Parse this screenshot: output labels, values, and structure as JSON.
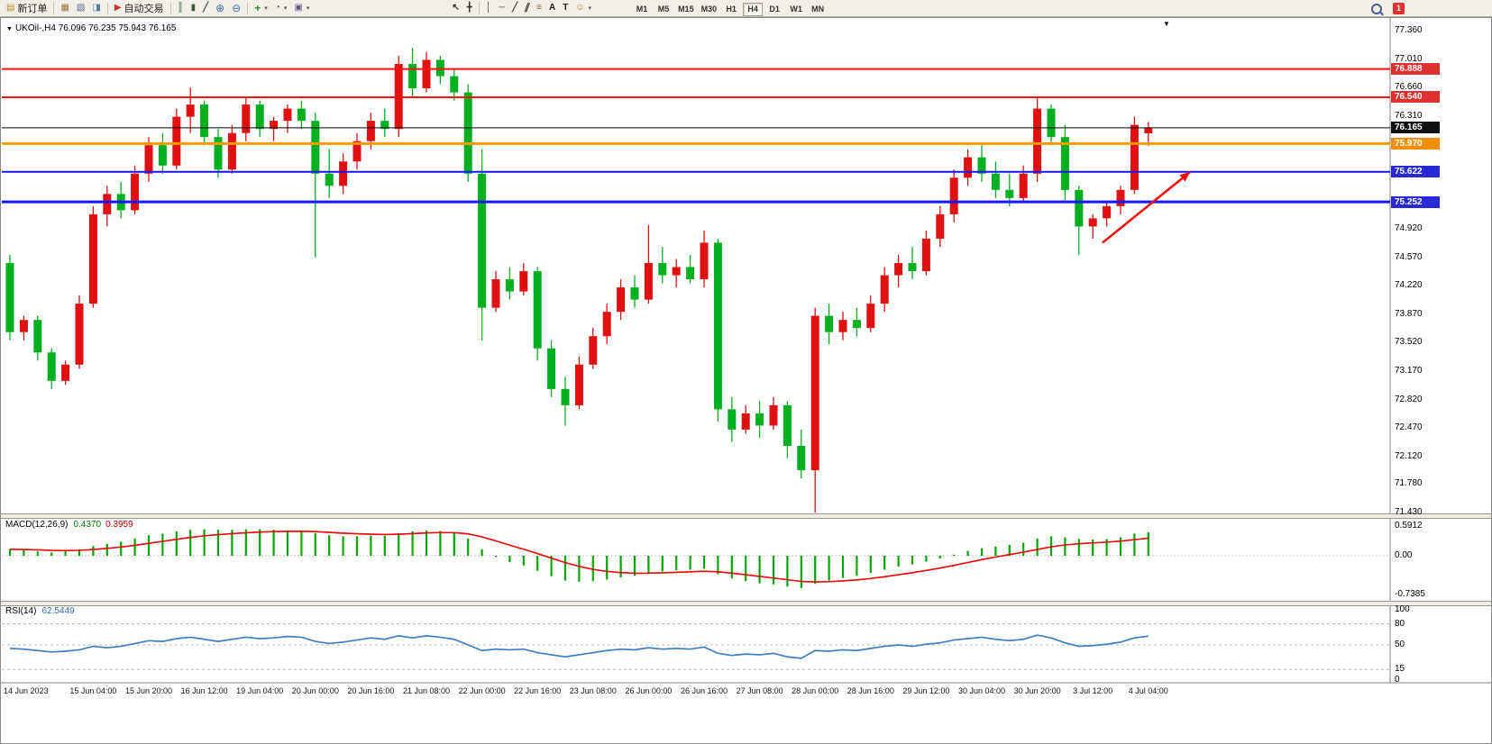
{
  "toolbar": {
    "new_order_label": "新订单",
    "autotrade_label": "自动交易",
    "timeframe_labels": [
      "M1",
      "M5",
      "M15",
      "M30",
      "H1",
      "H4",
      "D1",
      "W1",
      "MN"
    ],
    "active_timeframe": "H4",
    "notification_count": "1",
    "icons": {
      "new_order": "▤",
      "charts": "▦",
      "profiles": "▧",
      "sounds": "◨",
      "autotrade": "▶",
      "chart_bars": "║",
      "chart_candles": "▮",
      "chart_line": "╱",
      "zoom_in": "⊕",
      "zoom_out": "⊖",
      "add_indicator": "+",
      "periods": "◔",
      "templates": "▣",
      "cursor": "↖",
      "crosshair": "╋",
      "vertical_line": "│",
      "horizontal_line": "─",
      "trendline": "╱",
      "channel": "∥",
      "fibonacci": "≡",
      "text": "A",
      "label": "T",
      "shapes": "☺",
      "dropdown": "▾"
    }
  },
  "chart": {
    "title_text": "UKOil-,H4 76.096 76.235 75.943 76.165",
    "marker_glyph": "▼",
    "shift_marker_glyph": "▼",
    "colors": {
      "up": "#e01010",
      "down": "#00b01e",
      "background": "#ffffff",
      "axis_text": "#000000"
    },
    "hlines": [
      {
        "price": 76.888,
        "color": "#ff1111",
        "width": 2
      },
      {
        "price": 76.54,
        "color": "#ff1111",
        "width": 2
      },
      {
        "price": 76.165,
        "color": "#000000",
        "width": 1
      },
      {
        "price": 75.97,
        "color": "#ff9900",
        "width": 3
      },
      {
        "price": 75.622,
        "color": "#1414ff",
        "width": 2
      },
      {
        "price": 75.252,
        "color": "#1414ff",
        "width": 3
      }
    ],
    "price_tags": [
      {
        "text": "76.888",
        "price": 76.888,
        "bg": "#e03131"
      },
      {
        "text": "76.540",
        "price": 76.54,
        "bg": "#e03131"
      },
      {
        "text": "76.165",
        "price": 76.165,
        "bg": "#101010"
      },
      {
        "text": "75.970",
        "price": 75.97,
        "bg": "#f09000"
      },
      {
        "text": "75.622",
        "price": 75.622,
        "bg": "#2929d8"
      },
      {
        "text": "75.252",
        "price": 75.252,
        "bg": "#2929d8"
      }
    ],
    "price_axis": {
      "ticks": [
        "77.360",
        "77.010",
        "76.660",
        "76.310",
        "75.960",
        "75.610",
        "75.260",
        "74.920",
        "74.570",
        "74.220",
        "73.870",
        "73.520",
        "73.170",
        "72.820",
        "72.470",
        "72.120",
        "71.780",
        "71.430"
      ]
    },
    "time_axis": {
      "labels": [
        "14 Jun 2023",
        "15 Jun 04:00",
        "15 Jun 20:00",
        "16 Jun 12:00",
        "19 Jun 04:00",
        "20 Jun 00:00",
        "20 Jun 16:00",
        "21 Jun 08:00",
        "22 Jun 00:00",
        "22 Jun 16:00",
        "23 Jun 08:00",
        "26 Jun 00:00",
        "26 Jun 16:00",
        "27 Jun 08:00",
        "28 Jun 00:00",
        "28 Jun 16:00",
        "29 Jun 12:00",
        "30 Jun 04:00",
        "30 Jun 20:00",
        "3 Jul 12:00",
        "4 Jul 04:00"
      ]
    },
    "annotations": {
      "trend_arrow": {
        "from_index": 78.7,
        "from_price": 74.75,
        "to_index": 85,
        "to_price": 75.62,
        "color": "#ee1111"
      }
    }
  },
  "macd": {
    "label": "MACD(12,26,9)",
    "value_main": "0.4370",
    "value_signal": "0.3959",
    "axis_labels": [
      "0.5912",
      "0.00",
      "-0.7385"
    ],
    "color": "#00a800",
    "signal_color": "#f00000"
  },
  "rsi": {
    "label": "RSI(14)",
    "value": "62.5449",
    "axis_labels": [
      "100",
      "80",
      "50",
      "15",
      "0"
    ],
    "levels": [
      80,
      50,
      15
    ],
    "color": "#3d7ebf"
  },
  "chart_data": [
    {
      "type": "candlestick",
      "symbol": "UKOil-",
      "timeframe": "H4",
      "last_ohlc": {
        "open": 76.096,
        "high": 76.235,
        "low": 75.943,
        "close": 76.165
      },
      "ylim": [
        71.43,
        77.36
      ],
      "note": "red = bullish, green = bearish",
      "candles": [
        [
          74.5,
          74.6,
          73.55,
          73.65
        ],
        [
          73.65,
          73.85,
          73.55,
          73.8
        ],
        [
          73.8,
          73.85,
          73.3,
          73.4
        ],
        [
          73.4,
          73.45,
          72.95,
          73.05
        ],
        [
          73.05,
          73.3,
          73.0,
          73.25
        ],
        [
          73.25,
          74.1,
          73.2,
          74.0
        ],
        [
          74.0,
          75.2,
          73.95,
          75.1
        ],
        [
          75.1,
          75.45,
          74.95,
          75.35
        ],
        [
          75.35,
          75.5,
          75.05,
          75.15
        ],
        [
          75.15,
          75.7,
          75.1,
          75.6
        ],
        [
          75.6,
          76.05,
          75.5,
          75.95
        ],
        [
          75.95,
          76.1,
          75.6,
          75.7
        ],
        [
          75.7,
          76.4,
          75.65,
          76.3
        ],
        [
          76.3,
          76.66,
          76.1,
          76.45
        ],
        [
          76.45,
          76.5,
          75.95,
          76.05
        ],
        [
          76.05,
          76.15,
          75.55,
          75.65
        ],
        [
          75.65,
          76.2,
          75.6,
          76.1
        ],
        [
          76.1,
          76.55,
          76.0,
          76.45
        ],
        [
          76.45,
          76.5,
          76.05,
          76.15
        ],
        [
          76.15,
          76.3,
          76.0,
          76.25
        ],
        [
          76.25,
          76.45,
          76.1,
          76.4
        ],
        [
          76.4,
          76.5,
          76.15,
          76.25
        ],
        [
          76.25,
          76.35,
          74.57,
          75.6
        ],
        [
          75.6,
          75.9,
          75.3,
          75.45
        ],
        [
          75.45,
          75.85,
          75.35,
          75.75
        ],
        [
          75.75,
          76.1,
          75.65,
          76.0
        ],
        [
          76.0,
          76.35,
          75.9,
          76.25
        ],
        [
          76.25,
          76.4,
          76.05,
          76.15
        ],
        [
          76.15,
          77.05,
          76.05,
          76.95
        ],
        [
          76.95,
          77.15,
          76.55,
          76.65
        ],
        [
          76.65,
          77.1,
          76.6,
          77.0
        ],
        [
          77.0,
          77.05,
          76.7,
          76.8
        ],
        [
          76.8,
          76.9,
          76.5,
          76.6
        ],
        [
          76.6,
          76.7,
          75.5,
          75.6
        ],
        [
          75.6,
          75.9,
          73.55,
          73.95
        ],
        [
          73.95,
          74.4,
          73.9,
          74.3
        ],
        [
          74.3,
          74.45,
          74.05,
          74.15
        ],
        [
          74.15,
          74.5,
          74.1,
          74.4
        ],
        [
          74.4,
          74.45,
          73.3,
          73.45
        ],
        [
          73.45,
          73.55,
          72.85,
          72.95
        ],
        [
          72.95,
          73.1,
          72.5,
          72.75
        ],
        [
          72.75,
          73.35,
          72.7,
          73.25
        ],
        [
          73.25,
          73.7,
          73.2,
          73.6
        ],
        [
          73.6,
          74.0,
          73.5,
          73.9
        ],
        [
          73.9,
          74.3,
          73.8,
          74.2
        ],
        [
          74.2,
          74.35,
          73.95,
          74.05
        ],
        [
          74.05,
          74.97,
          74.0,
          74.5
        ],
        [
          74.5,
          74.7,
          74.25,
          74.35
        ],
        [
          74.35,
          74.55,
          74.2,
          74.45
        ],
        [
          74.45,
          74.6,
          74.25,
          74.3
        ],
        [
          74.3,
          74.9,
          74.2,
          74.75
        ],
        [
          74.75,
          74.8,
          72.55,
          72.7
        ],
        [
          72.7,
          72.85,
          72.3,
          72.45
        ],
        [
          72.45,
          72.75,
          72.4,
          72.65
        ],
        [
          72.65,
          72.8,
          72.35,
          72.5
        ],
        [
          72.5,
          72.85,
          72.45,
          72.75
        ],
        [
          72.75,
          72.8,
          72.1,
          72.25
        ],
        [
          72.25,
          72.45,
          71.85,
          71.95
        ],
        [
          71.95,
          73.95,
          71.43,
          73.85
        ],
        [
          73.85,
          74.0,
          73.5,
          73.65
        ],
        [
          73.65,
          73.9,
          73.55,
          73.8
        ],
        [
          73.8,
          73.95,
          73.6,
          73.7
        ],
        [
          73.7,
          74.1,
          73.65,
          74.0
        ],
        [
          74.0,
          74.45,
          73.9,
          74.35
        ],
        [
          74.35,
          74.6,
          74.2,
          74.5
        ],
        [
          74.5,
          74.7,
          74.3,
          74.4
        ],
        [
          74.4,
          74.9,
          74.35,
          74.8
        ],
        [
          74.8,
          75.2,
          74.7,
          75.1
        ],
        [
          75.1,
          75.65,
          75.0,
          75.55
        ],
        [
          75.55,
          75.9,
          75.45,
          75.8
        ],
        [
          75.8,
          75.95,
          75.5,
          75.6
        ],
        [
          75.6,
          75.75,
          75.3,
          75.4
        ],
        [
          75.4,
          75.6,
          75.2,
          75.3
        ],
        [
          75.3,
          75.7,
          75.25,
          75.6
        ],
        [
          75.6,
          76.54,
          75.5,
          76.4
        ],
        [
          76.4,
          76.45,
          75.95,
          76.05
        ],
        [
          76.05,
          76.2,
          75.25,
          75.4
        ],
        [
          75.4,
          75.45,
          74.6,
          74.95
        ],
        [
          74.95,
          75.1,
          74.8,
          75.05
        ],
        [
          75.05,
          75.25,
          74.95,
          75.2
        ],
        [
          75.2,
          75.45,
          75.1,
          75.4
        ],
        [
          75.4,
          76.3,
          75.35,
          76.2
        ],
        [
          76.096,
          76.235,
          75.943,
          76.165
        ]
      ]
    },
    {
      "type": "bar",
      "name": "MACD(12,26,9)",
      "ylim": [
        -0.7385,
        0.5912
      ],
      "values": [
        0.12,
        0.1,
        0.08,
        0.06,
        0.08,
        0.12,
        0.18,
        0.22,
        0.26,
        0.32,
        0.38,
        0.41,
        0.45,
        0.48,
        0.49,
        0.48,
        0.48,
        0.49,
        0.49,
        0.48,
        0.47,
        0.46,
        0.42,
        0.38,
        0.36,
        0.36,
        0.37,
        0.37,
        0.42,
        0.45,
        0.47,
        0.46,
        0.42,
        0.32,
        0.12,
        -0.02,
        -0.12,
        -0.18,
        -0.28,
        -0.38,
        -0.46,
        -0.48,
        -0.47,
        -0.44,
        -0.4,
        -0.37,
        -0.32,
        -0.29,
        -0.27,
        -0.26,
        -0.24,
        -0.34,
        -0.42,
        -0.47,
        -0.51,
        -0.53,
        -0.57,
        -0.6,
        -0.52,
        -0.46,
        -0.41,
        -0.37,
        -0.32,
        -0.26,
        -0.2,
        -0.16,
        -0.11,
        -0.05,
        0.02,
        0.09,
        0.14,
        0.17,
        0.2,
        0.24,
        0.32,
        0.36,
        0.34,
        0.31,
        0.3,
        0.31,
        0.34,
        0.41,
        0.437
      ]
    },
    {
      "type": "line",
      "name": "RSI(14)",
      "ylim": [
        0,
        100
      ],
      "levels": [
        80,
        50,
        15
      ],
      "values": [
        45,
        44,
        42,
        40,
        41,
        43,
        48,
        46,
        48,
        52,
        56,
        55,
        59,
        61,
        58,
        55,
        58,
        61,
        59,
        60,
        62,
        61,
        55,
        52,
        54,
        57,
        60,
        58,
        63,
        60,
        63,
        61,
        58,
        50,
        42,
        44,
        43,
        44,
        39,
        36,
        33,
        36,
        39,
        42,
        44,
        43,
        46,
        44,
        45,
        44,
        47,
        38,
        35,
        37,
        36,
        38,
        33,
        31,
        42,
        41,
        43,
        42,
        45,
        48,
        50,
        48,
        51,
        53,
        57,
        59,
        61,
        58,
        56,
        58,
        64,
        60,
        53,
        48,
        49,
        51,
        54,
        60,
        62.5
      ]
    }
  ]
}
